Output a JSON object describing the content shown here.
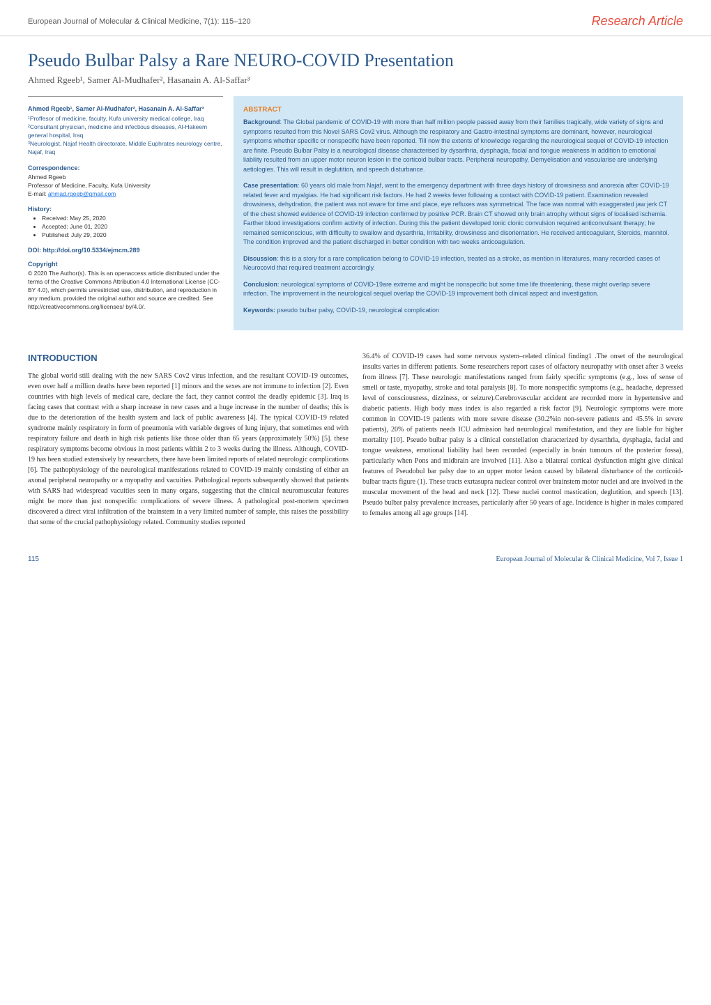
{
  "header": {
    "journal_ref": "European Journal of Molecular & Clinical Medicine, 7(1): 115–120",
    "article_type": "Research Article"
  },
  "title": "Pseudo Bulbar Palsy a Rare NEURO-COVID Presentation",
  "authors_line": "Ahmed Rgeeb¹, Samer Al-Mudhafer², Hasanain A. Al-Saffar³",
  "sidebar": {
    "author_colored": "Ahmed Rgeeb¹, Samer Al-Mudhafer², Hasanain A. Al-Saffar³",
    "affiliations": "¹Proffesor of medicine, faculty, Kufa university medical college, Iraq\n²Consultant physician, medicine and infectious diseases, Al-Hakeem general hospital, Iraq\n³Neurologist, Najaf Health directorate, Middle Euphrates neurology centre, Najaf, Iraq",
    "correspondence_heading": "Correspondence:",
    "correspondence_name": "Ahmed Rgeeb",
    "correspondence_title": "Professor of Medicine, Faculty, Kufa University",
    "correspondence_email_label": "E-mail: ",
    "correspondence_email": "ahmad.rgeeb@gmail.com",
    "history_heading": "History:",
    "history_items": [
      "Received: May 25, 2020",
      "Accepted: June 01, 2020",
      "Published: July 29, 2020"
    ],
    "doi_label": "DOI: http://doi.org/10.5334/ejmcm.289",
    "copyright_heading": "Copyright",
    "copyright_text": "© 2020 The Author(s). This is an openaccess article distributed under the terms of the Creative Commons Attribution 4.0 International License (CC-BY 4.0), which permits unrestricted use, distribution, and reproduction in any medium, provided the original author and source are credited. See http://creativecommons.org/licenses/ by/4.0/."
  },
  "abstract": {
    "heading": "ABSTRACT",
    "background_label": "Background",
    "background_text": ": The Global pandemic of COVID-19 with more than half million people passed away from their families tragically, wide variety of signs and symptoms resulted from this Novel SARS Cov2 virus. Although the respiratory and Gastro-intestinal symptoms are dominant, however, neurological symptoms whether specific or nonspecific have been reported. Till now the extents of knowledge regarding the neurological sequel of COVID-19 infection are finite. Pseudo Bulbar Palsy is a neurological disease characterised by dysarthria, dysphagia, facial and tongue weakness in addition to emotional liability resulted from an upper motor neuron lesion in the corticoid bulbar tracts. Peripheral neuropathy, Demyelisation and vascularise are underlying aetiologies. This will result in deglutition, and speech disturbance.",
    "case_label": "Case presentation",
    "case_text": ": 60 years old male from Najaf, went to the emergency department with three days history of drowsiness and anorexia after COVID-19 related fever and myalgias. He had significant risk factors. He had 2 weeks fever following a contact with COVID-19 patient. Examination revealed drowsiness, dehydration, the patient was not aware for time and place, eye refluxes was symmetrical. The face was normal with exaggerated jaw jerk CT of the chest showed evidence of COVID-19 infection confirmed by positive PCR. Brain CT showed only brain atrophy without signs of localised ischemia. Farther blood investigations confirm activity of infection. During this the patient developed tonic clonic convulsion required anticonvulsant therapy; he remained semiconscious, with difficulty to swallow and dysarthria, Irritability, drowsiness and disorientation. He received anticoagulant, Steroids, mannitol. The condition improved and the patient discharged in better condition with two weeks anticoagulation.",
    "discussion_label": "Discussion",
    "discussion_text": ": this is a story for a rare complication belong to COVID-19 infection, treated as a stroke, as mention in literatures, many recorded cases of Neurocovid that required treatment accordingly.",
    "conclusion_label": "Conclusion",
    "conclusion_text": ": neurological symptoms of COVID-19are extreme and might be nonspecific but some time life threatening, these might overlap severe infection. The improvement in the neurological sequel overlap the COVID-19 improvement both clinical aspect and investigation.",
    "keywords_label": "Keywords:",
    "keywords_text": " pseudo bulbar palsy, COVID-19, neurological complication"
  },
  "introduction": {
    "heading": "INTRODUCTION",
    "col1": "The global world still dealing with the new SARS Cov2 virus infection, and the resultant COVID-19 outcomes, even over half a million deaths have been reported [1] minors and the sexes are not immune to infection [2]. Even countries with high levels of medical care, declare the fact, they cannot control the deadly epidemic [3]. Iraq is facing cases that contrast with a sharp increase in new cases and a huge increase in the number of deaths; this is due to the deterioration of the health system and lack of public awareness [4]. The typical COVID-19 related syndrome mainly respiratory in form of pneumonia with variable degrees of lung injury, that sometimes end with respiratory failure and death in high risk patients like those older than 65 years (approximately 50%) [5]. these respiratory symptoms become obvious in most patients within 2 to 3 weeks during the illness. Although, COVID-19 has been studied extensively by researchers, there have been limited reports of related neurologic complications [6]. The pathophysiology of the neurological manifestations related to COVID-19 mainly consisting of either an axonal peripheral neuropathy or a myopathy and vacuities. Pathological reports subsequently showed that patients with SARS had widespread vacuities seen in many organs, suggesting that the clinical neuromuscular features might be more than just nonspecific complications of severe illness. A pathological post-mortem specimen discovered a direct viral infiltration of the brainstem in a very limited number of sample, this raises the possibility that some of the crucial pathophysiology related. Community studies reported",
    "col2": "36.4% of COVID-19 cases had some nervous system–related clinical finding1 .The onset of the neurological insults varies in different patients. Some researchers report cases of olfactory neuropathy with onset after 3 weeks from illness [7]. These neurologic manifestations ranged from fairly specific symptoms (e.g., loss of sense of smell or taste, myopathy, stroke and total paralysis [8]. To more nonspecific symptoms (e.g., headache, depressed level of consciousness, dizziness, or seizure).Cerebrovascular accident are recorded more in hypertensive and diabetic patients. High body mass index is also regarded a risk factor [9]. Neurologic symptoms were more common in COVID-19 patients with more severe disease (30.2%in non-severe patients and 45.5% in severe patients), 20% of patients needs ICU admission had neurological manifestation, and they are liable for higher mortality [10]. Pseudo bulbar palsy is a clinical constellation characterized by dysarthria, dysphagia, facial and tongue weakness, emotional liability had been recorded (especially in brain tumours of the posterior fossa), particularly when Pons and midbrain are involved [11]. Also a bilateral cortical dysfunction might give clinical features of Pseudobul bar palsy due to an upper motor lesion caused by bilateral disturbance of the corticoid-bulbar tracts figure (1). These tracts exrtasupra nuclear control over brainstem motor nuclei and are involved in the muscular movement of the head and neck [12]. These nuclei control mastication, deglutition, and speech [13]. Pseudo bulbar palsy prevalence increases, particularly after 50 years of age. Incidence is higher in males compared to females among all age groups [14]."
  },
  "footer": {
    "page_number": "115",
    "journal_footer": "European Journal of Molecular & Clinical Medicine, Vol 7, Issue 1"
  },
  "colors": {
    "title_blue": "#2c5a8e",
    "accent_red": "#e74c3c",
    "abstract_bg": "#d1e7f5",
    "abstract_heading": "#e67e22",
    "link_blue": "#1a73e8"
  }
}
